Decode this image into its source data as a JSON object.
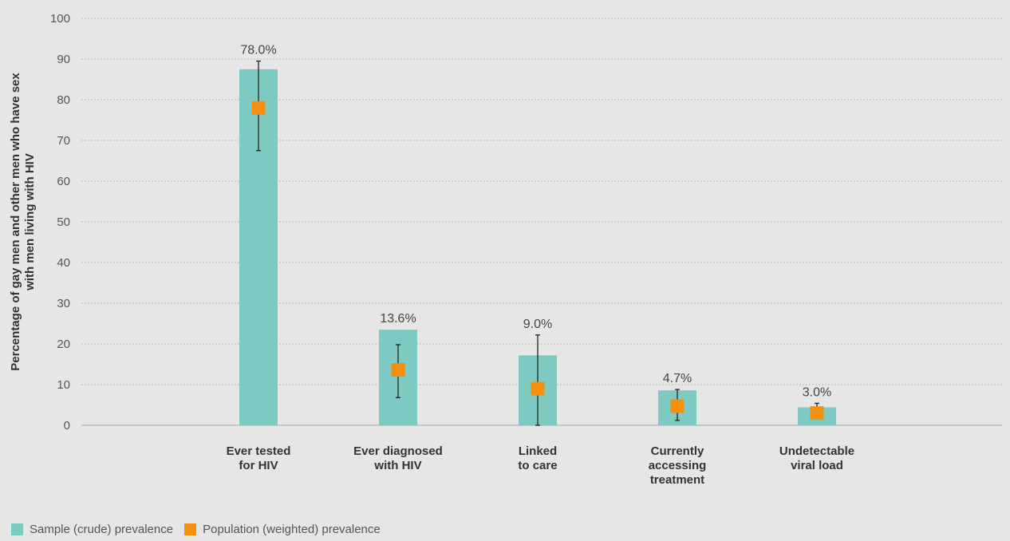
{
  "chart_data": {
    "type": "bar",
    "title": "",
    "xlabel": "",
    "ylabel_lines": [
      "Percentage of gay men and other men who have sex",
      "with men living with HIV"
    ],
    "ylim": [
      0,
      100
    ],
    "yticks": [
      0,
      10,
      20,
      30,
      40,
      50,
      60,
      70,
      80,
      90,
      100
    ],
    "grid": true,
    "categories": [
      [
        "Ever tested",
        "for HIV"
      ],
      [
        "Ever diagnosed",
        "with HIV"
      ],
      [
        "Linked",
        "to care"
      ],
      [
        "Currently",
        "accessing",
        "treatment"
      ],
      [
        "Undetectable",
        "viral load"
      ]
    ],
    "series": [
      {
        "name": "Sample (crude) prevalence",
        "type": "bar",
        "color": "#7ecac2",
        "values": [
          87.5,
          23.5,
          17.2,
          8.6,
          4.4
        ]
      },
      {
        "name": "Population (weighted) prevalence",
        "type": "point",
        "color": "#f5900f",
        "values": [
          78.0,
          13.6,
          9.0,
          4.7,
          3.0
        ],
        "labels": [
          "78.0%",
          "13.6%",
          "9.0%",
          "4.7%",
          "3.0%"
        ],
        "error_low": [
          67.5,
          6.8,
          0.0,
          1.2,
          1.6
        ],
        "error_high": [
          89.5,
          19.8,
          22.2,
          8.8,
          5.4
        ]
      }
    ],
    "legend_position": "bottom-left"
  }
}
